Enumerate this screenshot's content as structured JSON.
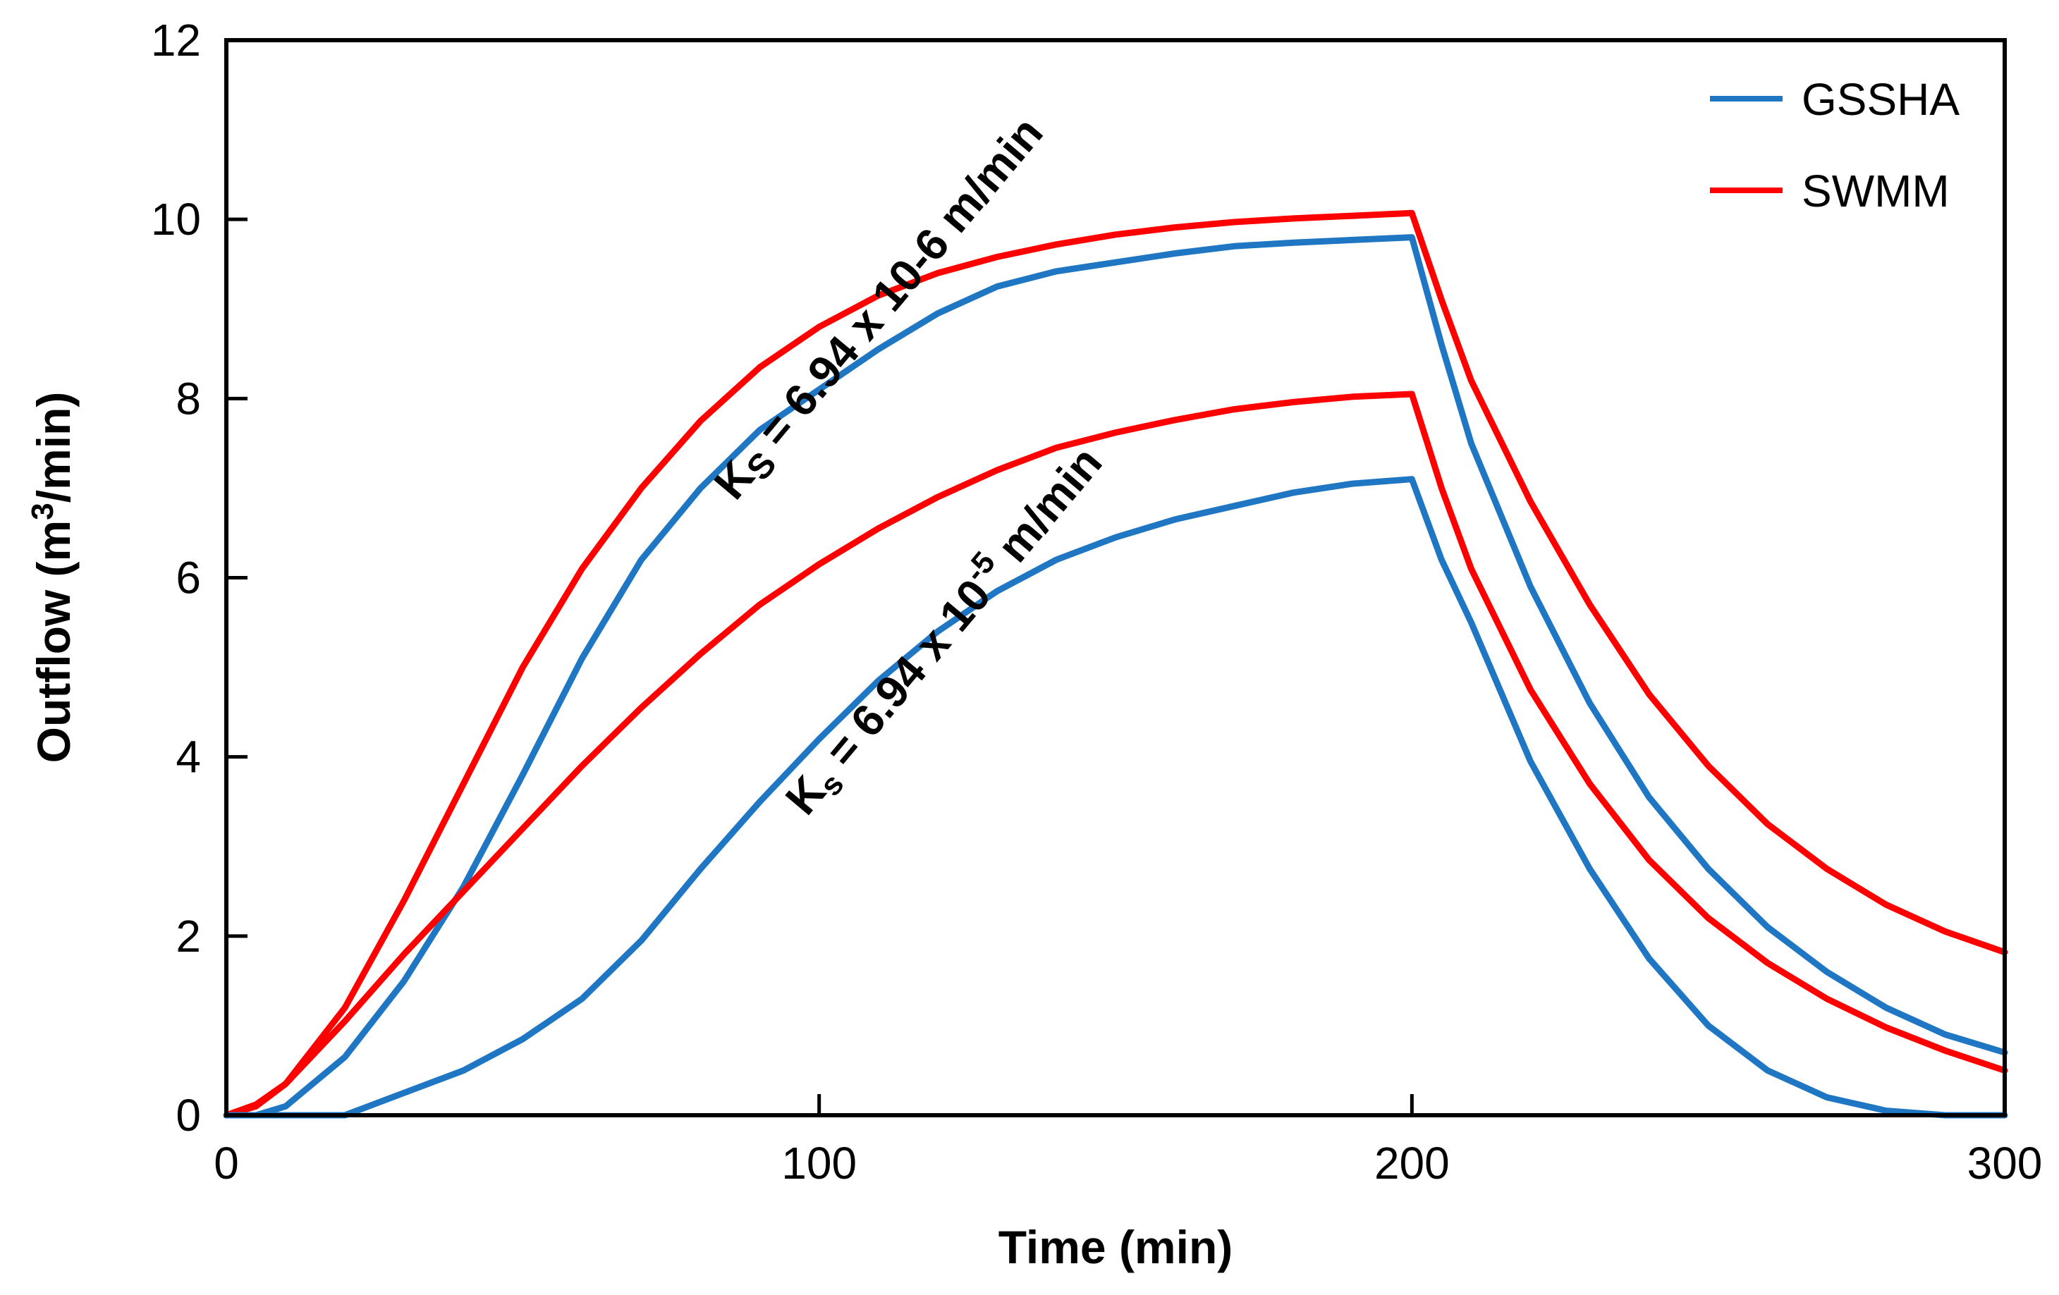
{
  "chart_data": {
    "type": "line",
    "title": "",
    "xlabel": "Time (min)",
    "ylabel_prefix": "Outflow (m",
    "ylabel_sup": "3",
    "ylabel_suffix": "/min)",
    "xlim": [
      0,
      300
    ],
    "ylim": [
      0,
      12
    ],
    "x_ticks": [
      0,
      100,
      200,
      300
    ],
    "x_tick_labels": [
      "0",
      "100",
      "200",
      "300"
    ],
    "y_ticks": [
      0,
      2,
      4,
      6,
      8,
      10,
      12
    ],
    "y_tick_labels": [
      "0",
      "2",
      "4",
      "6",
      "8",
      "10",
      "12"
    ],
    "grid": false,
    "legend": {
      "position": "top-right",
      "entries": [
        {
          "name": "GSSHA",
          "color": "#1f77c4"
        },
        {
          "name": "SWMM",
          "color": "#ff0000"
        }
      ]
    },
    "annotations": [
      {
        "prefix": "K",
        "sub": "S",
        "text": " = 6.94 x 10-6 m/min",
        "x": 112,
        "y": 8.9
      },
      {
        "prefix": "K",
        "sub": "s",
        "text": " = 6.94 x 10",
        "sup": "-5",
        "suffix": " m/min",
        "x": 123,
        "y": 5.3
      }
    ],
    "series": [
      {
        "name": "SWMM",
        "case": "Ks = 6.94 x 10-6 m/min",
        "color": "#ff0000",
        "x": [
          0,
          5,
          10,
          20,
          30,
          40,
          50,
          60,
          70,
          80,
          90,
          100,
          110,
          120,
          130,
          140,
          150,
          160,
          170,
          180,
          190,
          200,
          205,
          210,
          220,
          230,
          240,
          250,
          260,
          270,
          280,
          290,
          300
        ],
        "y": [
          0,
          0.1,
          0.35,
          1.2,
          2.4,
          3.7,
          5.0,
          6.1,
          7.0,
          7.75,
          8.35,
          8.8,
          9.15,
          9.4,
          9.58,
          9.72,
          9.83,
          9.91,
          9.97,
          10.01,
          10.04,
          10.07,
          9.1,
          8.2,
          6.85,
          5.7,
          4.7,
          3.9,
          3.25,
          2.75,
          2.35,
          2.05,
          1.82
        ]
      },
      {
        "name": "GSSHA",
        "case": "Ks = 6.94 x 10-6 m/min",
        "color": "#1f77c4",
        "x": [
          0,
          5,
          10,
          20,
          30,
          40,
          50,
          60,
          70,
          80,
          90,
          100,
          110,
          120,
          130,
          140,
          150,
          160,
          170,
          180,
          190,
          200,
          205,
          210,
          220,
          230,
          240,
          250,
          260,
          270,
          280,
          290,
          300
        ],
        "y": [
          0,
          0,
          0.1,
          0.65,
          1.5,
          2.55,
          3.8,
          5.1,
          6.2,
          7.0,
          7.65,
          8.1,
          8.55,
          8.95,
          9.25,
          9.42,
          9.52,
          9.62,
          9.7,
          9.74,
          9.77,
          9.8,
          8.6,
          7.5,
          5.9,
          4.6,
          3.55,
          2.75,
          2.1,
          1.6,
          1.2,
          0.9,
          0.7
        ]
      },
      {
        "name": "SWMM",
        "case": "Ks = 6.94 x 10-5 m/min",
        "color": "#ff0000",
        "x": [
          0,
          5,
          10,
          20,
          30,
          40,
          50,
          60,
          70,
          80,
          90,
          100,
          110,
          120,
          130,
          140,
          150,
          160,
          170,
          180,
          190,
          200,
          205,
          210,
          220,
          230,
          240,
          250,
          260,
          270,
          280,
          290,
          300
        ],
        "y": [
          0,
          0.12,
          0.35,
          1.05,
          1.8,
          2.5,
          3.2,
          3.9,
          4.55,
          5.15,
          5.7,
          6.15,
          6.55,
          6.9,
          7.2,
          7.45,
          7.62,
          7.76,
          7.88,
          7.96,
          8.02,
          8.05,
          7.0,
          6.1,
          4.75,
          3.7,
          2.85,
          2.2,
          1.7,
          1.3,
          0.98,
          0.72,
          0.5
        ]
      },
      {
        "name": "GSSHA",
        "case": "Ks = 6.94 x 10-5 m/min",
        "color": "#1f77c4",
        "x": [
          0,
          10,
          20,
          30,
          40,
          50,
          60,
          70,
          80,
          90,
          100,
          110,
          120,
          130,
          140,
          150,
          160,
          170,
          180,
          190,
          200,
          205,
          210,
          220,
          230,
          240,
          250,
          260,
          270,
          280,
          290,
          300
        ],
        "y": [
          0,
          0,
          0,
          0.25,
          0.5,
          0.85,
          1.3,
          1.95,
          2.75,
          3.5,
          4.2,
          4.85,
          5.4,
          5.85,
          6.2,
          6.45,
          6.65,
          6.8,
          6.95,
          7.05,
          7.1,
          6.2,
          5.5,
          3.95,
          2.75,
          1.75,
          1.0,
          0.5,
          0.2,
          0.05,
          0,
          0
        ]
      }
    ]
  }
}
